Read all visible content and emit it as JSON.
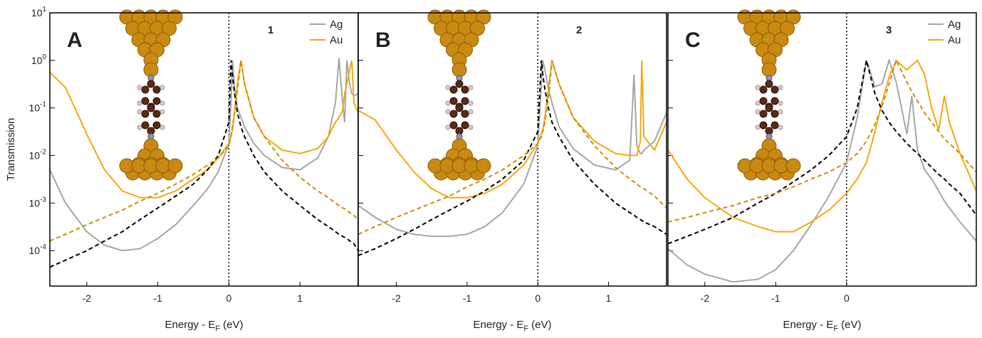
{
  "chart_data": [
    {
      "type": "line",
      "log_y": true,
      "panel_label": "A",
      "panel_number": "1",
      "ylabel": "Transmission",
      "xlabel": {
        "text": "Energy - E",
        "subscript": "F",
        "unit": "(eV)"
      },
      "xlim": [
        -2.52,
        1.82
      ],
      "xticks": [
        -2,
        -1,
        0,
        1
      ],
      "vline": 0,
      "ylim": [
        1.8e-05,
        10
      ],
      "yticks": [
        {
          "value": 10,
          "label": "10",
          "exponent": "1"
        },
        {
          "value": 1,
          "label": "10",
          "exponent": "0"
        },
        {
          "value": 0.1,
          "label": "10",
          "exponent": "-1"
        },
        {
          "value": 0.01,
          "label": "10",
          "exponent": "-2"
        },
        {
          "value": 0.001,
          "label": "10",
          "exponent": "-3"
        },
        {
          "value": 0.0001,
          "label": "10",
          "exponent": "-4"
        }
      ],
      "x": [
        -2.52,
        -2.3,
        -2,
        -1.75,
        -1.5,
        -1.25,
        -1,
        -0.75,
        -0.5,
        -0.3,
        -0.15,
        0,
        0.03,
        0.05,
        0.08,
        0.12,
        0.17,
        0.22,
        0.35,
        0.5,
        0.75,
        1,
        1.25,
        1.4,
        1.5,
        1.55,
        1.6,
        1.63,
        1.66,
        1.7,
        1.73,
        1.76,
        1.82
      ],
      "series": [
        {
          "name": "Ag",
          "color": "#a6a6a6",
          "dashed": false,
          "values": [
            0.005,
            0.001,
            0.00025,
            0.00013,
            0.0001,
            0.00011,
            0.00018,
            0.00035,
            0.00089,
            0.002,
            0.0045,
            0.018,
            0.13,
            1,
            0.25,
            0.1,
            0.063,
            0.04,
            0.018,
            0.01,
            0.0056,
            0.005,
            0.0089,
            0.025,
            0.13,
            1.12,
            0.13,
            0.05,
            1,
            0.32,
            0.2,
            0.18,
            0.2
          ]
        },
        {
          "name": "Au",
          "color": "#f5a80f",
          "dashed": false,
          "values": [
            0.56,
            0.27,
            0.028,
            0.005,
            0.0018,
            0.0013,
            0.0013,
            0.0018,
            0.0032,
            0.005,
            0.0089,
            0.018,
            0.025,
            0.035,
            0.079,
            0.32,
            1,
            0.32,
            0.063,
            0.025,
            0.013,
            0.011,
            0.014,
            0.025,
            0.05,
            0.063,
            0.089,
            0.2,
            0.32,
            0.63,
            1,
            0.13,
            0.079
          ]
        },
        {
          "color": "#000000",
          "dashed": true,
          "values": [
            4.5e-05,
            6.3e-05,
            0.0001,
            0.00016,
            0.00025,
            0.00045,
            0.00079,
            0.0014,
            0.0025,
            0.005,
            0.01,
            0.05,
            1,
            0.5,
            0.2,
            0.079,
            0.04,
            0.025,
            0.01,
            0.0045,
            0.0018,
            0.00089,
            0.00045,
            0.00032,
            0.00025,
            0.00022,
            0.0002,
            0.00019,
            0.00018,
            0.00016,
            0.00015,
            0.00014,
            0.0001
          ]
        },
        {
          "color": "#c8900a",
          "dashed": true,
          "values": [
            0.00016,
            0.00022,
            0.00035,
            0.0005,
            0.00071,
            0.0011,
            0.0016,
            0.0025,
            0.004,
            0.0063,
            0.0089,
            0.016,
            0.025,
            0.04,
            0.079,
            0.25,
            1,
            0.32,
            0.063,
            0.025,
            0.0079,
            0.0035,
            0.0018,
            0.0013,
            0.001,
            0.00089,
            0.00079,
            0.00076,
            0.00071,
            0.00063,
            0.00059,
            0.00055,
            0.00045
          ]
        }
      ]
    },
    {
      "type": "line",
      "log_y": true,
      "panel_label": "B",
      "panel_number": "2",
      "xlabel": {
        "text": "Energy - E",
        "subscript": "F",
        "unit": "(eV)"
      },
      "xlim": [
        -2.54,
        1.82
      ],
      "xticks": [
        -2,
        -1,
        0,
        1
      ],
      "vline": 0,
      "ylim": [
        1.8e-05,
        10
      ],
      "yticks": [
        10,
        1,
        0.1,
        0.01,
        0.001,
        0.0001
      ],
      "ytick_labels": false,
      "x": [
        -2.54,
        -2.3,
        -2,
        -1.75,
        -1.5,
        -1.25,
        -1,
        -0.75,
        -0.5,
        -0.2,
        0,
        0.05,
        0.07,
        0.1,
        0.15,
        0.2,
        0.3,
        0.5,
        0.8,
        1.1,
        1.3,
        1.36,
        1.4,
        1.45,
        1.47,
        1.5,
        1.65,
        1.82
      ],
      "series": [
        {
          "color": "#a6a6a6",
          "dashed": false,
          "values": [
            0.00089,
            0.0005,
            0.00028,
            0.00022,
            0.0002,
            0.0002,
            0.00022,
            0.00032,
            0.00063,
            0.0025,
            0.016,
            0.32,
            1,
            0.63,
            0.25,
            0.13,
            0.04,
            0.014,
            0.0063,
            0.005,
            0.0079,
            0.5,
            0.016,
            0.011,
            0.011,
            0.013,
            0.02,
            0.079
          ]
        },
        {
          "color": "#f5a80f",
          "dashed": false,
          "values": [
            0.089,
            0.056,
            0.013,
            0.0045,
            0.002,
            0.0013,
            0.0013,
            0.0016,
            0.0025,
            0.0063,
            0.018,
            0.028,
            0.035,
            0.063,
            0.25,
            1,
            0.32,
            0.063,
            0.02,
            0.011,
            0.01,
            0.01,
            0.01,
            0.02,
            1,
            0.025,
            0.013,
            0.05
          ]
        },
        {
          "color": "#000000",
          "dashed": true,
          "values": [
            7.9e-05,
            0.00011,
            0.00018,
            0.00028,
            0.00045,
            0.00071,
            0.0011,
            0.0018,
            0.0032,
            0.0079,
            0.032,
            1,
            0.5,
            0.25,
            0.1,
            0.05,
            0.025,
            0.0079,
            0.0025,
            0.001,
            0.00063,
            0.00056,
            0.0005,
            0.00045,
            0.00043,
            0.0004,
            0.00032,
            0.00022
          ]
        },
        {
          "color": "#c8900a",
          "dashed": true,
          "values": [
            0.00022,
            0.00032,
            0.0005,
            0.00071,
            0.001,
            0.0014,
            0.0022,
            0.0032,
            0.005,
            0.01,
            0.018,
            0.025,
            0.032,
            0.05,
            0.16,
            1,
            0.32,
            0.063,
            0.016,
            0.0056,
            0.0032,
            0.0028,
            0.0025,
            0.0022,
            0.0021,
            0.002,
            0.0014,
            0.00079
          ]
        }
      ]
    },
    {
      "type": "line",
      "log_y": true,
      "panel_label": "C",
      "panel_number": "3",
      "xlabel": {
        "text": "Energy - E",
        "subscript": "F",
        "unit": "(eV)"
      },
      "xlim": [
        -2.52,
        1.83
      ],
      "xticks": [
        -2,
        -1,
        0
      ],
      "vline": 0,
      "ylim": [
        1.8e-05,
        10
      ],
      "yticks": [
        10,
        1,
        0.1,
        0.01,
        0.001,
        0.0001
      ],
      "ytick_labels": false,
      "x": [
        -2.52,
        -2.25,
        -2,
        -1.6,
        -1.25,
        -1,
        -0.75,
        -0.5,
        -0.25,
        0,
        0.15,
        0.28,
        0.4,
        0.5,
        0.6,
        0.7,
        0.85,
        0.92,
        1.0,
        1.1,
        1.2,
        1.3,
        1.38,
        1.45,
        1.6,
        1.83
      ],
      "series": [
        {
          "name": "Ag",
          "color": "#a6a6a6",
          "dashed": false,
          "values": [
            0.00011,
            5e-05,
            3.2e-05,
            2.2e-05,
            2.5e-05,
            4e-05,
            0.0001,
            0.00035,
            0.0014,
            0.0071,
            0.063,
            1,
            0.28,
            0.32,
            1,
            0.35,
            0.028,
            0.18,
            0.013,
            0.005,
            0.0032,
            0.0018,
            0.0011,
            0.00079,
            0.0004,
            0.00016
          ]
        },
        {
          "name": "Au",
          "color": "#f5a80f",
          "dashed": false,
          "values": [
            0.013,
            0.0032,
            0.0013,
            0.0005,
            0.00032,
            0.00025,
            0.00025,
            0.0004,
            0.00071,
            0.0016,
            0.0032,
            0.0071,
            0.032,
            0.13,
            0.45,
            1,
            0.63,
            0.79,
            1,
            0.5,
            0.1,
            0.035,
            0.18,
            0.05,
            0.011,
            0.0018
          ]
        },
        {
          "color": "#000000",
          "dashed": true,
          "values": [
            0.00014,
            0.0002,
            0.00028,
            0.0005,
            0.001,
            0.0016,
            0.0028,
            0.005,
            0.01,
            0.025,
            0.1,
            1,
            0.2,
            0.089,
            0.05,
            0.032,
            0.018,
            0.014,
            0.011,
            0.0079,
            0.0056,
            0.004,
            0.0032,
            0.0025,
            0.0016,
            0.00056
          ]
        },
        {
          "color": "#c8900a",
          "dashed": true,
          "values": [
            0.0004,
            0.0005,
            0.00063,
            0.00089,
            0.0013,
            0.0016,
            0.0022,
            0.0032,
            0.0045,
            0.0071,
            0.011,
            0.02,
            0.045,
            0.11,
            0.32,
            1,
            0.35,
            0.22,
            0.14,
            0.079,
            0.05,
            0.032,
            0.022,
            0.018,
            0.011,
            0.0045
          ]
        }
      ]
    }
  ]
}
